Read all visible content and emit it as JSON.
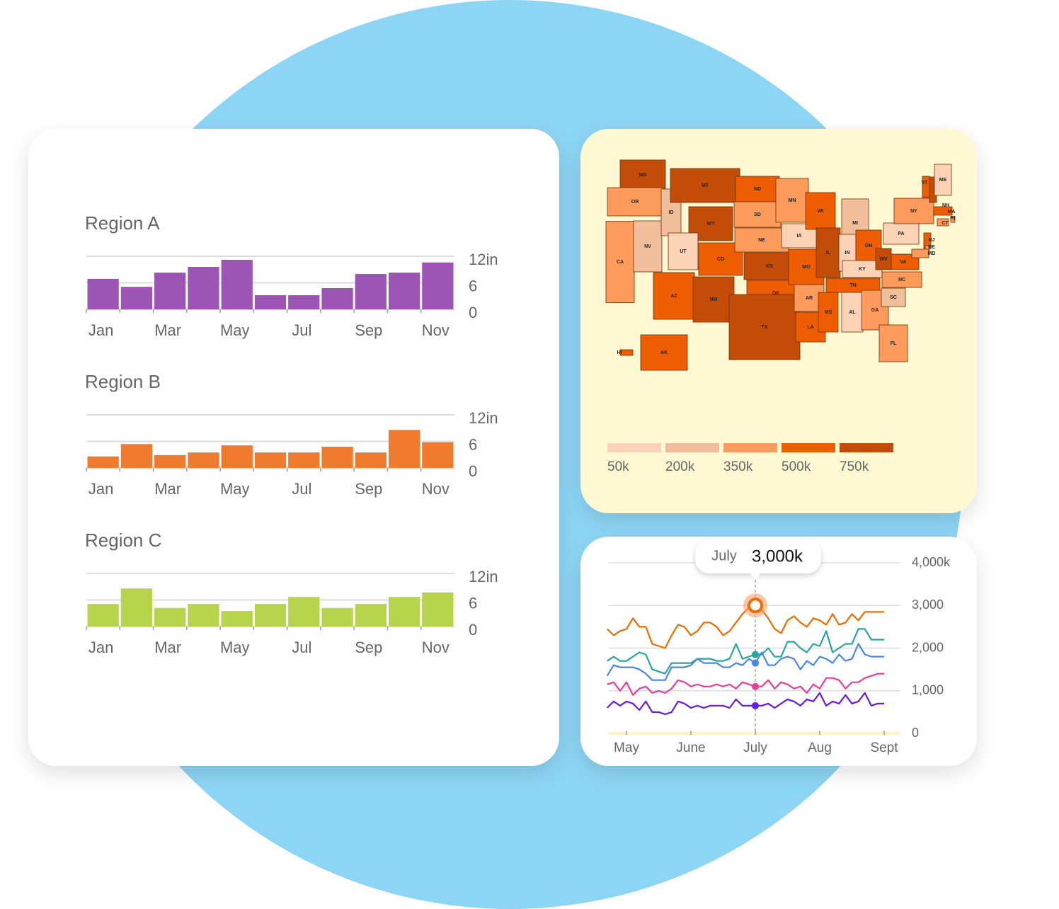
{
  "chart_data": [
    {
      "type": "bar",
      "title": "Region A",
      "categories": [
        "Jan",
        null,
        "Mar",
        null,
        "May",
        null,
        "Jul",
        null,
        "Sep",
        null,
        "Nov"
      ],
      "values": [
        6.9,
        5.1,
        8.3,
        9.6,
        11.2,
        3.2,
        3.2,
        4.8,
        8,
        8.3,
        10.6
      ],
      "color": "#9c55b5",
      "ylim": [
        0,
        12
      ],
      "yticks": [
        0,
        6,
        {
          "value": 12,
          "label": "12in"
        }
      ],
      "grid": true
    },
    {
      "type": "bar",
      "title": "Region B",
      "categories": [
        "Jan",
        null,
        "Mar",
        null,
        "May",
        null,
        "Jul",
        null,
        "Sep",
        null,
        "Nov"
      ],
      "values": [
        2.6,
        5.4,
        2.9,
        3.5,
        5.1,
        3.5,
        3.5,
        4.8,
        3.5,
        8.6,
        5.8
      ],
      "color": "#f07b2e",
      "ylim": [
        0,
        12
      ],
      "yticks": [
        0,
        6,
        {
          "value": 12,
          "label": "12in"
        }
      ],
      "grid": true
    },
    {
      "type": "bar",
      "title": "Region C",
      "categories": [
        "Jan",
        null,
        "Mar",
        null,
        "May",
        null,
        "Jul",
        null,
        "Sep",
        null,
        "Nov"
      ],
      "values": [
        5.1,
        8.6,
        4.2,
        5.1,
        3.5,
        5.1,
        6.7,
        4.2,
        5.1,
        6.7,
        7.7
      ],
      "color": "#b8d44c",
      "ylim": [
        0,
        12
      ],
      "yticks": [
        0,
        6,
        {
          "value": 12,
          "label": "12in"
        }
      ],
      "grid": true
    },
    {
      "type": "choropleth",
      "states": [
        "WA",
        "OR",
        "CA",
        "NV",
        "ID",
        "MT",
        "WY",
        "UT",
        "CO",
        "AZ",
        "NM",
        "ND",
        "SD",
        "NE",
        "KS",
        "OK",
        "TX",
        "MN",
        "IA",
        "MO",
        "AR",
        "LA",
        "WI",
        "IL",
        "MI",
        "IN",
        "OH",
        "KY",
        "TN",
        "MS",
        "AL",
        "GA",
        "FL",
        "SC",
        "NC",
        "VA",
        "WV",
        "PA",
        "NY",
        "VT",
        "NH",
        "ME",
        "MA",
        "RI",
        "CT",
        "NJ",
        "DE",
        "MD",
        "AK",
        "HI"
      ],
      "values": [
        750,
        350,
        350,
        200,
        200,
        750,
        750,
        50,
        500,
        500,
        750,
        500,
        350,
        350,
        750,
        500,
        750,
        350,
        50,
        500,
        350,
        500,
        500,
        750,
        200,
        50,
        500,
        50,
        500,
        500,
        50,
        350,
        350,
        200,
        350,
        500,
        750,
        50,
        350,
        500,
        750,
        50,
        500,
        350,
        350,
        500,
        350,
        350,
        500,
        500
      ],
      "legend": {
        "values": [
          {
            "value": 50,
            "label": "50k"
          },
          {
            "value": 200,
            "label": "200k"
          },
          {
            "value": 350,
            "label": "350k"
          },
          {
            "value": 500,
            "label": "500k"
          },
          {
            "value": 750,
            "label": "750k"
          }
        ],
        "colors": [
          "#fdd3b8",
          "#f2bf9c",
          "#fd9b5c",
          "#ef5d02",
          "#c34c08"
        ]
      }
    },
    {
      "type": "line",
      "categories": [
        null,
        null,
        null,
        "May",
        null,
        null,
        null,
        null,
        null,
        null,
        null,
        null,
        null,
        "June",
        null,
        null,
        null,
        null,
        null,
        null,
        null,
        null,
        null,
        "July",
        null,
        null,
        null,
        null,
        null,
        null,
        null,
        null,
        null,
        "Aug",
        null,
        null,
        null,
        null,
        null,
        null,
        null,
        null,
        null,
        "Sept"
      ],
      "series": [
        {
          "color": "#ef6c00",
          "values": [
            2450,
            2300,
            2400,
            2450,
            2700,
            2500,
            2500,
            2100,
            2050,
            2000,
            2300,
            2550,
            2500,
            2300,
            2400,
            2600,
            2600,
            2500,
            2300,
            2400,
            2600,
            2800,
            2950,
            3000,
            2900,
            2700,
            2450,
            2350,
            2650,
            2750,
            2600,
            2500,
            2700,
            2650,
            2550,
            2800,
            2550,
            2600,
            2800,
            2650,
            2850,
            2850,
            2850,
            2850
          ]
        },
        {
          "color": "#26a69a",
          "values": [
            1700,
            1800,
            1700,
            1700,
            1800,
            1900,
            1850,
            1500,
            1450,
            1400,
            1650,
            1650,
            1650,
            1650,
            1750,
            1750,
            1750,
            1700,
            1700,
            1750,
            2100,
            1750,
            1800,
            1850,
            1850,
            2000,
            1800,
            1800,
            2150,
            2150,
            2000,
            1900,
            2100,
            2050,
            2400,
            1900,
            2000,
            2100,
            2100,
            2450,
            2450,
            2200,
            2200,
            2200
          ]
        },
        {
          "color": "#4a86e8",
          "values": [
            1350,
            1600,
            1550,
            1550,
            1550,
            1500,
            1400,
            1250,
            1250,
            1250,
            1550,
            1550,
            1550,
            1600,
            1750,
            1650,
            1650,
            1650,
            1550,
            1550,
            1650,
            1600,
            1750,
            1650,
            1900,
            1600,
            1600,
            1750,
            1800,
            1750,
            1500,
            1700,
            1600,
            1800,
            1750,
            1650,
            1850,
            1700,
            1750,
            2100,
            1850,
            1800,
            1800,
            1800
          ]
        },
        {
          "color": "#e8409a",
          "values": [
            1150,
            1200,
            1000,
            1200,
            900,
            1050,
            1100,
            950,
            1000,
            950,
            1050,
            1250,
            1200,
            1100,
            1150,
            1100,
            1100,
            1150,
            1100,
            1150,
            1050,
            1200,
            1150,
            1100,
            1100,
            1250,
            1050,
            1200,
            1150,
            1050,
            1100,
            950,
            1150,
            1050,
            1300,
            1300,
            1250,
            1050,
            1200,
            1200,
            1300,
            1350,
            1400,
            1400
          ]
        },
        {
          "color": "#6a1be0",
          "values": [
            600,
            750,
            650,
            750,
            700,
            550,
            750,
            500,
            500,
            450,
            500,
            750,
            700,
            600,
            650,
            600,
            650,
            650,
            650,
            600,
            800,
            650,
            650,
            650,
            650,
            700,
            600,
            700,
            800,
            750,
            650,
            800,
            750,
            950,
            650,
            750,
            700,
            900,
            700,
            750,
            950,
            650,
            700,
            700
          ]
        }
      ],
      "ylim": [
        0,
        4000
      ],
      "yticks": [
        0,
        {
          "value": 1000,
          "label": "1,000"
        },
        {
          "value": 2000,
          "label": "2,000"
        },
        {
          "value": 3000,
          "label": "3,000"
        },
        {
          "value": 4000,
          "label": "4,000k"
        }
      ],
      "grid": true,
      "tooltip": {
        "index": 23,
        "text": "3,000k"
      }
    }
  ]
}
